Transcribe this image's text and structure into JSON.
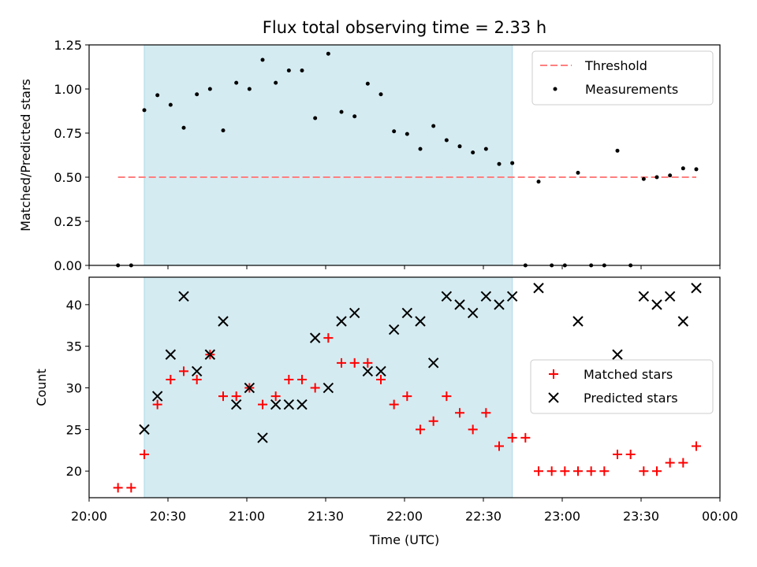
{
  "chart_data": [
    {
      "type": "scatter",
      "title": "Flux total observing time = 2.33 h",
      "ylabel": "Matched/Predicted stars",
      "xlabel": "",
      "xlim": [
        "20:00",
        "00:00"
      ],
      "ylim": [
        0,
        1.25
      ],
      "yticks": [
        "0.00",
        "0.25",
        "0.50",
        "0.75",
        "1.00",
        "1.25"
      ],
      "grid": false,
      "legend_position": "top-right",
      "shaded_interval": {
        "start": "20:21",
        "end": "22:41",
        "color": "#d4ebf1"
      },
      "threshold": {
        "name": "Threshold",
        "value": 0.5,
        "x_start": "20:11",
        "x_end": "23:51",
        "color": "#ff7f7f"
      },
      "series": [
        {
          "name": "Measurements",
          "color": "#000000",
          "points": [
            {
              "t": "20:11",
              "v": 0.0
            },
            {
              "t": "20:16",
              "v": 0.0
            },
            {
              "t": "20:21",
              "v": 0.88
            },
            {
              "t": "20:26",
              "v": 0.965
            },
            {
              "t": "20:31",
              "v": 0.91
            },
            {
              "t": "20:36",
              "v": 0.78
            },
            {
              "t": "20:41",
              "v": 0.97
            },
            {
              "t": "20:46",
              "v": 1.0
            },
            {
              "t": "20:51",
              "v": 0.765
            },
            {
              "t": "20:56",
              "v": 1.035
            },
            {
              "t": "21:01",
              "v": 1.0
            },
            {
              "t": "21:06",
              "v": 1.165
            },
            {
              "t": "21:11",
              "v": 1.035
            },
            {
              "t": "21:16",
              "v": 1.105
            },
            {
              "t": "21:21",
              "v": 1.105
            },
            {
              "t": "21:26",
              "v": 0.835
            },
            {
              "t": "21:31",
              "v": 1.2
            },
            {
              "t": "21:36",
              "v": 0.87
            },
            {
              "t": "21:41",
              "v": 0.845
            },
            {
              "t": "21:46",
              "v": 1.03
            },
            {
              "t": "21:51",
              "v": 0.97
            },
            {
              "t": "21:56",
              "v": 0.76
            },
            {
              "t": "22:01",
              "v": 0.745
            },
            {
              "t": "22:06",
              "v": 0.66
            },
            {
              "t": "22:11",
              "v": 0.79
            },
            {
              "t": "22:16",
              "v": 0.71
            },
            {
              "t": "22:21",
              "v": 0.675
            },
            {
              "t": "22:26",
              "v": 0.64
            },
            {
              "t": "22:31",
              "v": 0.66
            },
            {
              "t": "22:36",
              "v": 0.575
            },
            {
              "t": "22:41",
              "v": 0.58
            },
            {
              "t": "22:46",
              "v": 0.0
            },
            {
              "t": "22:51",
              "v": 0.475
            },
            {
              "t": "22:56",
              "v": 0.0
            },
            {
              "t": "23:01",
              "v": 0.0
            },
            {
              "t": "23:06",
              "v": 0.525
            },
            {
              "t": "23:11",
              "v": 0.0
            },
            {
              "t": "23:16",
              "v": 0.0
            },
            {
              "t": "23:21",
              "v": 0.65
            },
            {
              "t": "23:26",
              "v": 0.0
            },
            {
              "t": "23:31",
              "v": 0.49
            },
            {
              "t": "23:36",
              "v": 0.5
            },
            {
              "t": "23:41",
              "v": 0.51
            },
            {
              "t": "23:46",
              "v": 0.55
            },
            {
              "t": "23:51",
              "v": 0.545
            }
          ]
        }
      ]
    },
    {
      "type": "scatter",
      "title": "",
      "ylabel": "Count",
      "xlabel": "Time (UTC)",
      "xlim": [
        "20:00",
        "00:00"
      ],
      "xticks": [
        "20:00",
        "20:30",
        "21:00",
        "21:30",
        "22:00",
        "22:30",
        "23:00",
        "23:30",
        "00:00"
      ],
      "ylim": [
        16.8,
        43.3
      ],
      "yticks": [
        "20",
        "25",
        "30",
        "35",
        "40"
      ],
      "grid": false,
      "legend_position": "center-right",
      "shaded_interval": {
        "start": "20:21",
        "end": "22:41",
        "color": "#d4ebf1"
      },
      "series": [
        {
          "name": "Matched stars",
          "color": "#ff0000",
          "marker": "plus",
          "points": [
            {
              "t": "20:11",
              "v": 18
            },
            {
              "t": "20:16",
              "v": 18
            },
            {
              "t": "20:21",
              "v": 22
            },
            {
              "t": "20:26",
              "v": 28
            },
            {
              "t": "20:31",
              "v": 31
            },
            {
              "t": "20:36",
              "v": 32
            },
            {
              "t": "20:41",
              "v": 31
            },
            {
              "t": "20:46",
              "v": 34
            },
            {
              "t": "20:51",
              "v": 29
            },
            {
              "t": "20:56",
              "v": 29
            },
            {
              "t": "21:01",
              "v": 30
            },
            {
              "t": "21:06",
              "v": 28
            },
            {
              "t": "21:11",
              "v": 29
            },
            {
              "t": "21:16",
              "v": 31
            },
            {
              "t": "21:21",
              "v": 31
            },
            {
              "t": "21:26",
              "v": 30
            },
            {
              "t": "21:31",
              "v": 36
            },
            {
              "t": "21:36",
              "v": 33
            },
            {
              "t": "21:41",
              "v": 33
            },
            {
              "t": "21:46",
              "v": 33
            },
            {
              "t": "21:51",
              "v": 31
            },
            {
              "t": "21:56",
              "v": 28
            },
            {
              "t": "22:01",
              "v": 29
            },
            {
              "t": "22:06",
              "v": 25
            },
            {
              "t": "22:11",
              "v": 26
            },
            {
              "t": "22:16",
              "v": 29
            },
            {
              "t": "22:21",
              "v": 27
            },
            {
              "t": "22:26",
              "v": 25
            },
            {
              "t": "22:31",
              "v": 27
            },
            {
              "t": "22:36",
              "v": 23
            },
            {
              "t": "22:41",
              "v": 24
            },
            {
              "t": "22:46",
              "v": 24
            },
            {
              "t": "22:51",
              "v": 20
            },
            {
              "t": "22:56",
              "v": 20
            },
            {
              "t": "23:01",
              "v": 20
            },
            {
              "t": "23:06",
              "v": 20
            },
            {
              "t": "23:11",
              "v": 20
            },
            {
              "t": "23:16",
              "v": 20
            },
            {
              "t": "23:21",
              "v": 22
            },
            {
              "t": "23:26",
              "v": 22
            },
            {
              "t": "23:31",
              "v": 20
            },
            {
              "t": "23:36",
              "v": 20
            },
            {
              "t": "23:41",
              "v": 21
            },
            {
              "t": "23:46",
              "v": 21
            },
            {
              "t": "23:51",
              "v": 23
            }
          ]
        },
        {
          "name": "Predicted stars",
          "color": "#000000",
          "marker": "x",
          "points": [
            {
              "t": "20:21",
              "v": 25
            },
            {
              "t": "20:26",
              "v": 29
            },
            {
              "t": "20:31",
              "v": 34
            },
            {
              "t": "20:36",
              "v": 41
            },
            {
              "t": "20:41",
              "v": 32
            },
            {
              "t": "20:46",
              "v": 34
            },
            {
              "t": "20:51",
              "v": 38
            },
            {
              "t": "20:56",
              "v": 28
            },
            {
              "t": "21:01",
              "v": 30
            },
            {
              "t": "21:06",
              "v": 24
            },
            {
              "t": "21:11",
              "v": 28
            },
            {
              "t": "21:16",
              "v": 28
            },
            {
              "t": "21:21",
              "v": 28
            },
            {
              "t": "21:26",
              "v": 36
            },
            {
              "t": "21:31",
              "v": 30
            },
            {
              "t": "21:36",
              "v": 38
            },
            {
              "t": "21:41",
              "v": 39
            },
            {
              "t": "21:46",
              "v": 32
            },
            {
              "t": "21:51",
              "v": 32
            },
            {
              "t": "21:56",
              "v": 37
            },
            {
              "t": "22:01",
              "v": 39
            },
            {
              "t": "22:06",
              "v": 38
            },
            {
              "t": "22:11",
              "v": 33
            },
            {
              "t": "22:16",
              "v": 41
            },
            {
              "t": "22:21",
              "v": 40
            },
            {
              "t": "22:26",
              "v": 39
            },
            {
              "t": "22:31",
              "v": 41
            },
            {
              "t": "22:36",
              "v": 40
            },
            {
              "t": "22:41",
              "v": 41
            },
            {
              "t": "22:51",
              "v": 42
            },
            {
              "t": "23:06",
              "v": 38
            },
            {
              "t": "23:21",
              "v": 34
            },
            {
              "t": "23:31",
              "v": 41
            },
            {
              "t": "23:36",
              "v": 40
            },
            {
              "t": "23:41",
              "v": 41
            },
            {
              "t": "23:46",
              "v": 38
            },
            {
              "t": "23:51",
              "v": 42
            }
          ]
        }
      ]
    }
  ]
}
